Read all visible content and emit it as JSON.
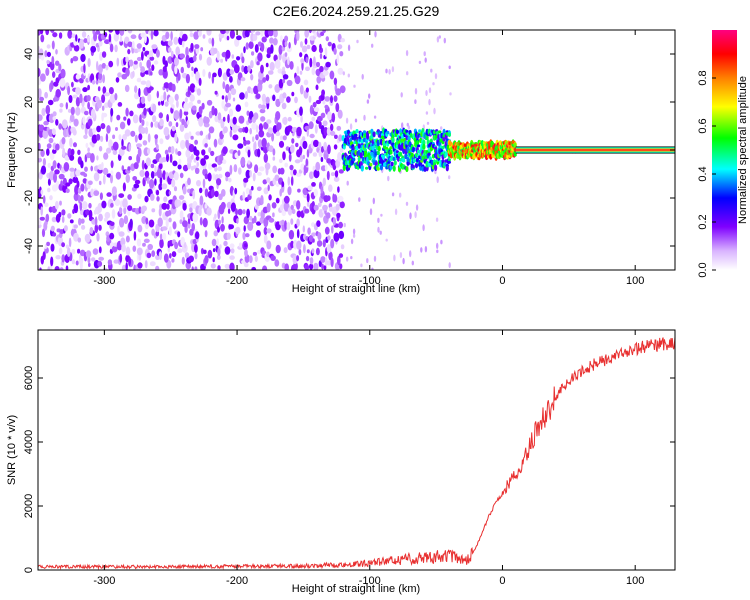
{
  "title": "C2E6.2024.259.21.25.G29",
  "colors": {
    "snr_line": "#e83030",
    "occultation_trace": "#ff2020"
  },
  "chart_data": [
    {
      "type": "heatmap",
      "xlabel": "Height of straight line (km)",
      "ylabel": "Frequency (Hz)",
      "xlim": [
        -350,
        130
      ],
      "ylim": [
        -50,
        50
      ],
      "x_ticks": [
        "-300",
        "-200",
        "-100",
        "0",
        "100"
      ],
      "y_ticks": [
        "-40",
        "-20",
        "0",
        "20",
        "40"
      ],
      "colorbar": {
        "label": "Normalized spectral amplitude",
        "range": [
          0,
          1
        ],
        "ticks": [
          "0.0",
          "0.2",
          "0.4",
          "0.6",
          "0.8"
        ]
      },
      "regions": [
        {
          "x_range": [
            -350,
            -120
          ],
          "description": "noise",
          "amplitude_range": [
            0.02,
            0.12
          ]
        },
        {
          "x_range": [
            -120,
            -40
          ],
          "frequency_center": 0,
          "frequency_spread": 10,
          "amplitude_range": [
            0.2,
            0.6
          ]
        },
        {
          "x_range": [
            -40,
            10
          ],
          "frequency_center": 0,
          "frequency_spread": 4,
          "amplitude_range": [
            0.5,
            0.95
          ]
        },
        {
          "x_range": [
            10,
            130
          ],
          "frequency_center": 0,
          "frequency_spread": 1.5,
          "amplitude_range": [
            0.9,
            1.0
          ]
        }
      ]
    },
    {
      "type": "line",
      "xlabel": "Height of straight line (km)",
      "ylabel": "SNR (10 * v/v)",
      "xlim": [
        -350,
        130
      ],
      "ylim": [
        0,
        7500
      ],
      "x_ticks": [
        "-300",
        "-200",
        "-100",
        "0",
        "100"
      ],
      "y_ticks": [
        "0",
        "2000",
        "4000",
        "6000"
      ],
      "series": [
        {
          "x": [
            -350,
            -250,
            -150,
            -110,
            -80,
            -60,
            -40,
            -30,
            -25,
            -20,
            -15,
            -10,
            -5,
            0,
            5,
            10,
            15,
            20,
            25,
            30,
            35,
            40,
            50,
            60,
            70,
            80,
            90,
            100,
            110,
            120,
            130
          ],
          "y": [
            100,
            100,
            130,
            180,
            300,
            400,
            450,
            300,
            350,
            700,
            1200,
            1700,
            2100,
            2400,
            2700,
            3000,
            3400,
            3800,
            4300,
            4700,
            5000,
            5400,
            5900,
            6200,
            6450,
            6600,
            6750,
            6900,
            7000,
            7050,
            7100
          ]
        }
      ]
    }
  ]
}
